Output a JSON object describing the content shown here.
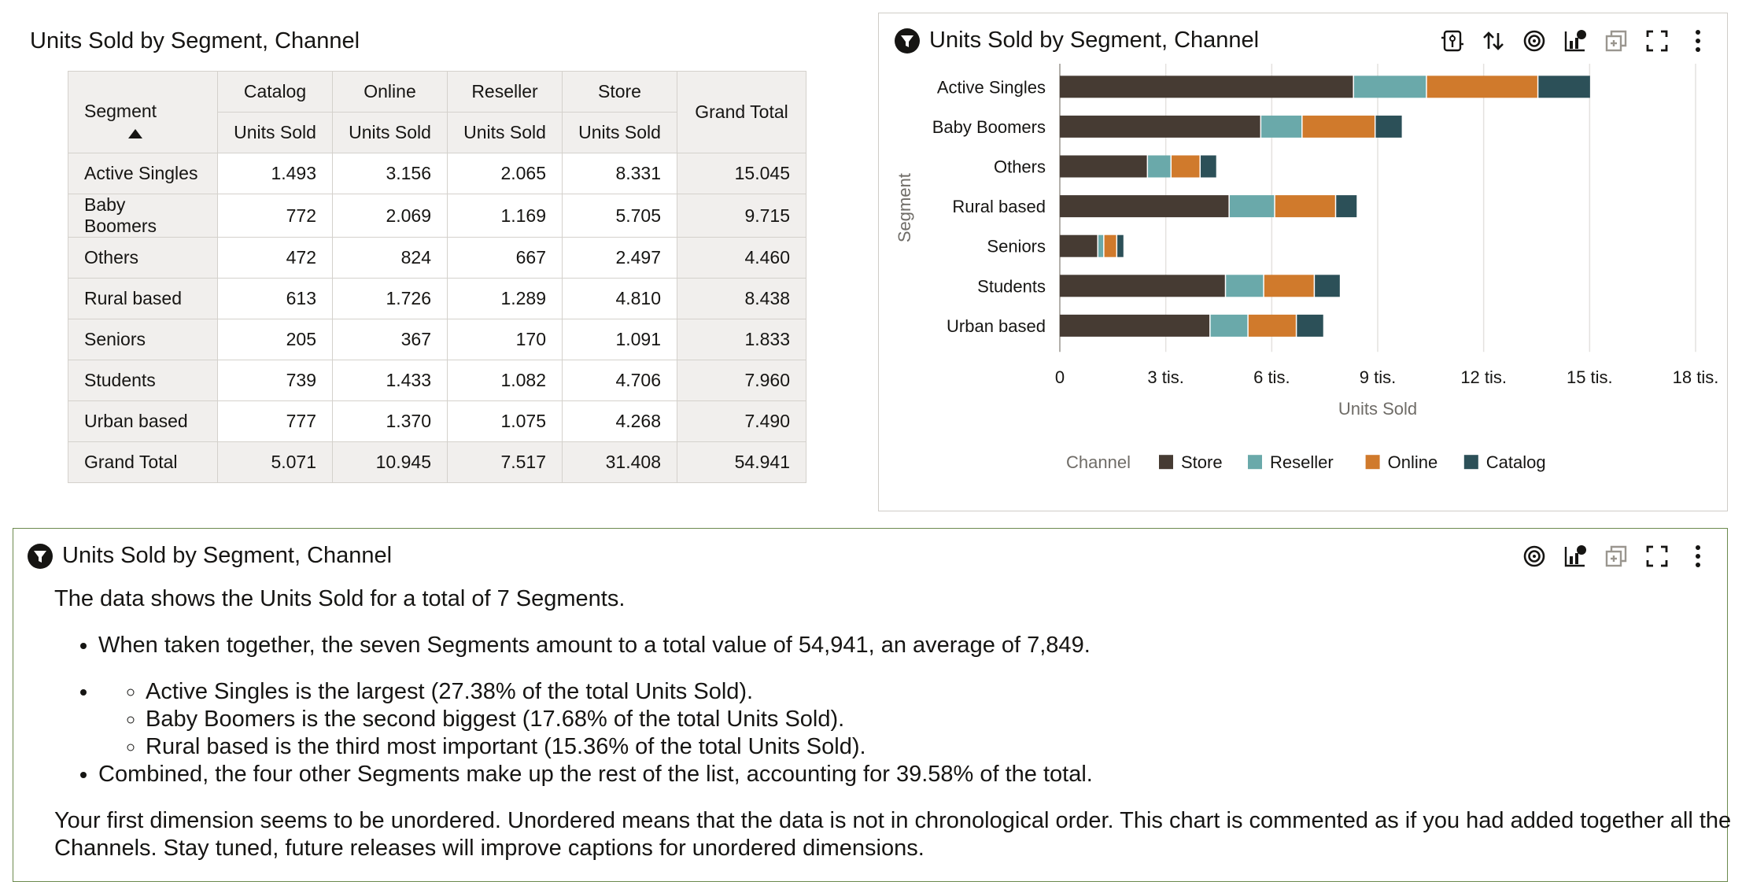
{
  "table_panel": {
    "title": "Units Sold by Segment, Channel",
    "segment_header": "Segment",
    "grand_total_header": "Grand Total",
    "channels": [
      "Catalog",
      "Online",
      "Reseller",
      "Store"
    ],
    "measure": "Units Sold",
    "rows": [
      {
        "segment": "Active Singles",
        "values": [
          "1.493",
          "3.156",
          "2.065",
          "8.331"
        ],
        "total": "15.045"
      },
      {
        "segment": "Baby Boomers",
        "values": [
          "772",
          "2.069",
          "1.169",
          "5.705"
        ],
        "total": "9.715"
      },
      {
        "segment": "Others",
        "values": [
          "472",
          "824",
          "667",
          "2.497"
        ],
        "total": "4.460"
      },
      {
        "segment": "Rural based",
        "values": [
          "613",
          "1.726",
          "1.289",
          "4.810"
        ],
        "total": "8.438"
      },
      {
        "segment": "Seniors",
        "values": [
          "205",
          "367",
          "170",
          "1.091"
        ],
        "total": "1.833"
      },
      {
        "segment": "Students",
        "values": [
          "739",
          "1.433",
          "1.082",
          "4.706"
        ],
        "total": "7.960"
      },
      {
        "segment": "Urban based",
        "values": [
          "777",
          "1.370",
          "1.075",
          "4.268"
        ],
        "total": "7.490"
      }
    ],
    "grand_total_row": {
      "label": "Grand Total",
      "values": [
        "5.071",
        "10.945",
        "7.517",
        "31.408"
      ],
      "total": "54.941"
    }
  },
  "chart_panel": {
    "title": "Units Sold by Segment, Channel",
    "toolbar_icons": [
      "data-tuning-icon",
      "sort-icon",
      "target-icon",
      "add-insight-icon",
      "copy-icon",
      "fullscreen-icon",
      "more-icon"
    ]
  },
  "chart_data": {
    "type": "bar",
    "orientation": "horizontal",
    "stacked": true,
    "categories": [
      "Active Singles",
      "Baby Boomers",
      "Others",
      "Rural based",
      "Seniors",
      "Students",
      "Urban based"
    ],
    "series": [
      {
        "name": "Store",
        "values": [
          8331,
          5705,
          2497,
          4810,
          1091,
          4706,
          4268
        ],
        "color": "#463b33"
      },
      {
        "name": "Reseller",
        "values": [
          2065,
          1169,
          667,
          1289,
          170,
          1082,
          1075
        ],
        "color": "#6aa9aa"
      },
      {
        "name": "Online",
        "values": [
          3156,
          2069,
          824,
          1726,
          367,
          1433,
          1370
        ],
        "color": "#d07a2c"
      },
      {
        "name": "Catalog",
        "values": [
          1493,
          772,
          472,
          613,
          205,
          739,
          777
        ],
        "color": "#2c5058"
      }
    ],
    "xlim": [
      0,
      18000
    ],
    "x_ticks": [
      0,
      3000,
      6000,
      9000,
      12000,
      15000,
      18000
    ],
    "x_tick_labels": [
      "0",
      "3 tis.",
      "6 tis.",
      "9 tis.",
      "12 tis.",
      "15 tis.",
      "18 tis."
    ],
    "xlabel": "Units Sold",
    "ylabel": "Segment",
    "legend_title": "Channel",
    "legend_position": "bottom",
    "grid": true
  },
  "narrative_panel": {
    "title": "Units Sold by Segment, Channel",
    "toolbar_icons": [
      "target-icon",
      "add-insight-icon",
      "copy-icon",
      "fullscreen-icon",
      "more-icon"
    ],
    "intro": "The data shows the Units Sold for a total of 7 Segments.",
    "bullet_total": "When taken together, the seven Segments amount to a total value of 54,941, an average of 7,849.",
    "sub_bullets": [
      "Active Singles is the largest (27.38% of the total Units Sold).",
      "Baby Boomers is the second biggest (17.68% of the total Units Sold).",
      "Rural based is the third most important (15.36% of the total Units Sold)."
    ],
    "bullet_rest": "Combined, the four other Segments make up the rest of the list, accounting for 39.58% of the total.",
    "closing": "Your first dimension seems to be unordered. Unordered means that the data is not in chronological order. This chart is commented as if you had added together all the Channels. Stay tuned, future releases will improve captions for unordered dimensions."
  }
}
